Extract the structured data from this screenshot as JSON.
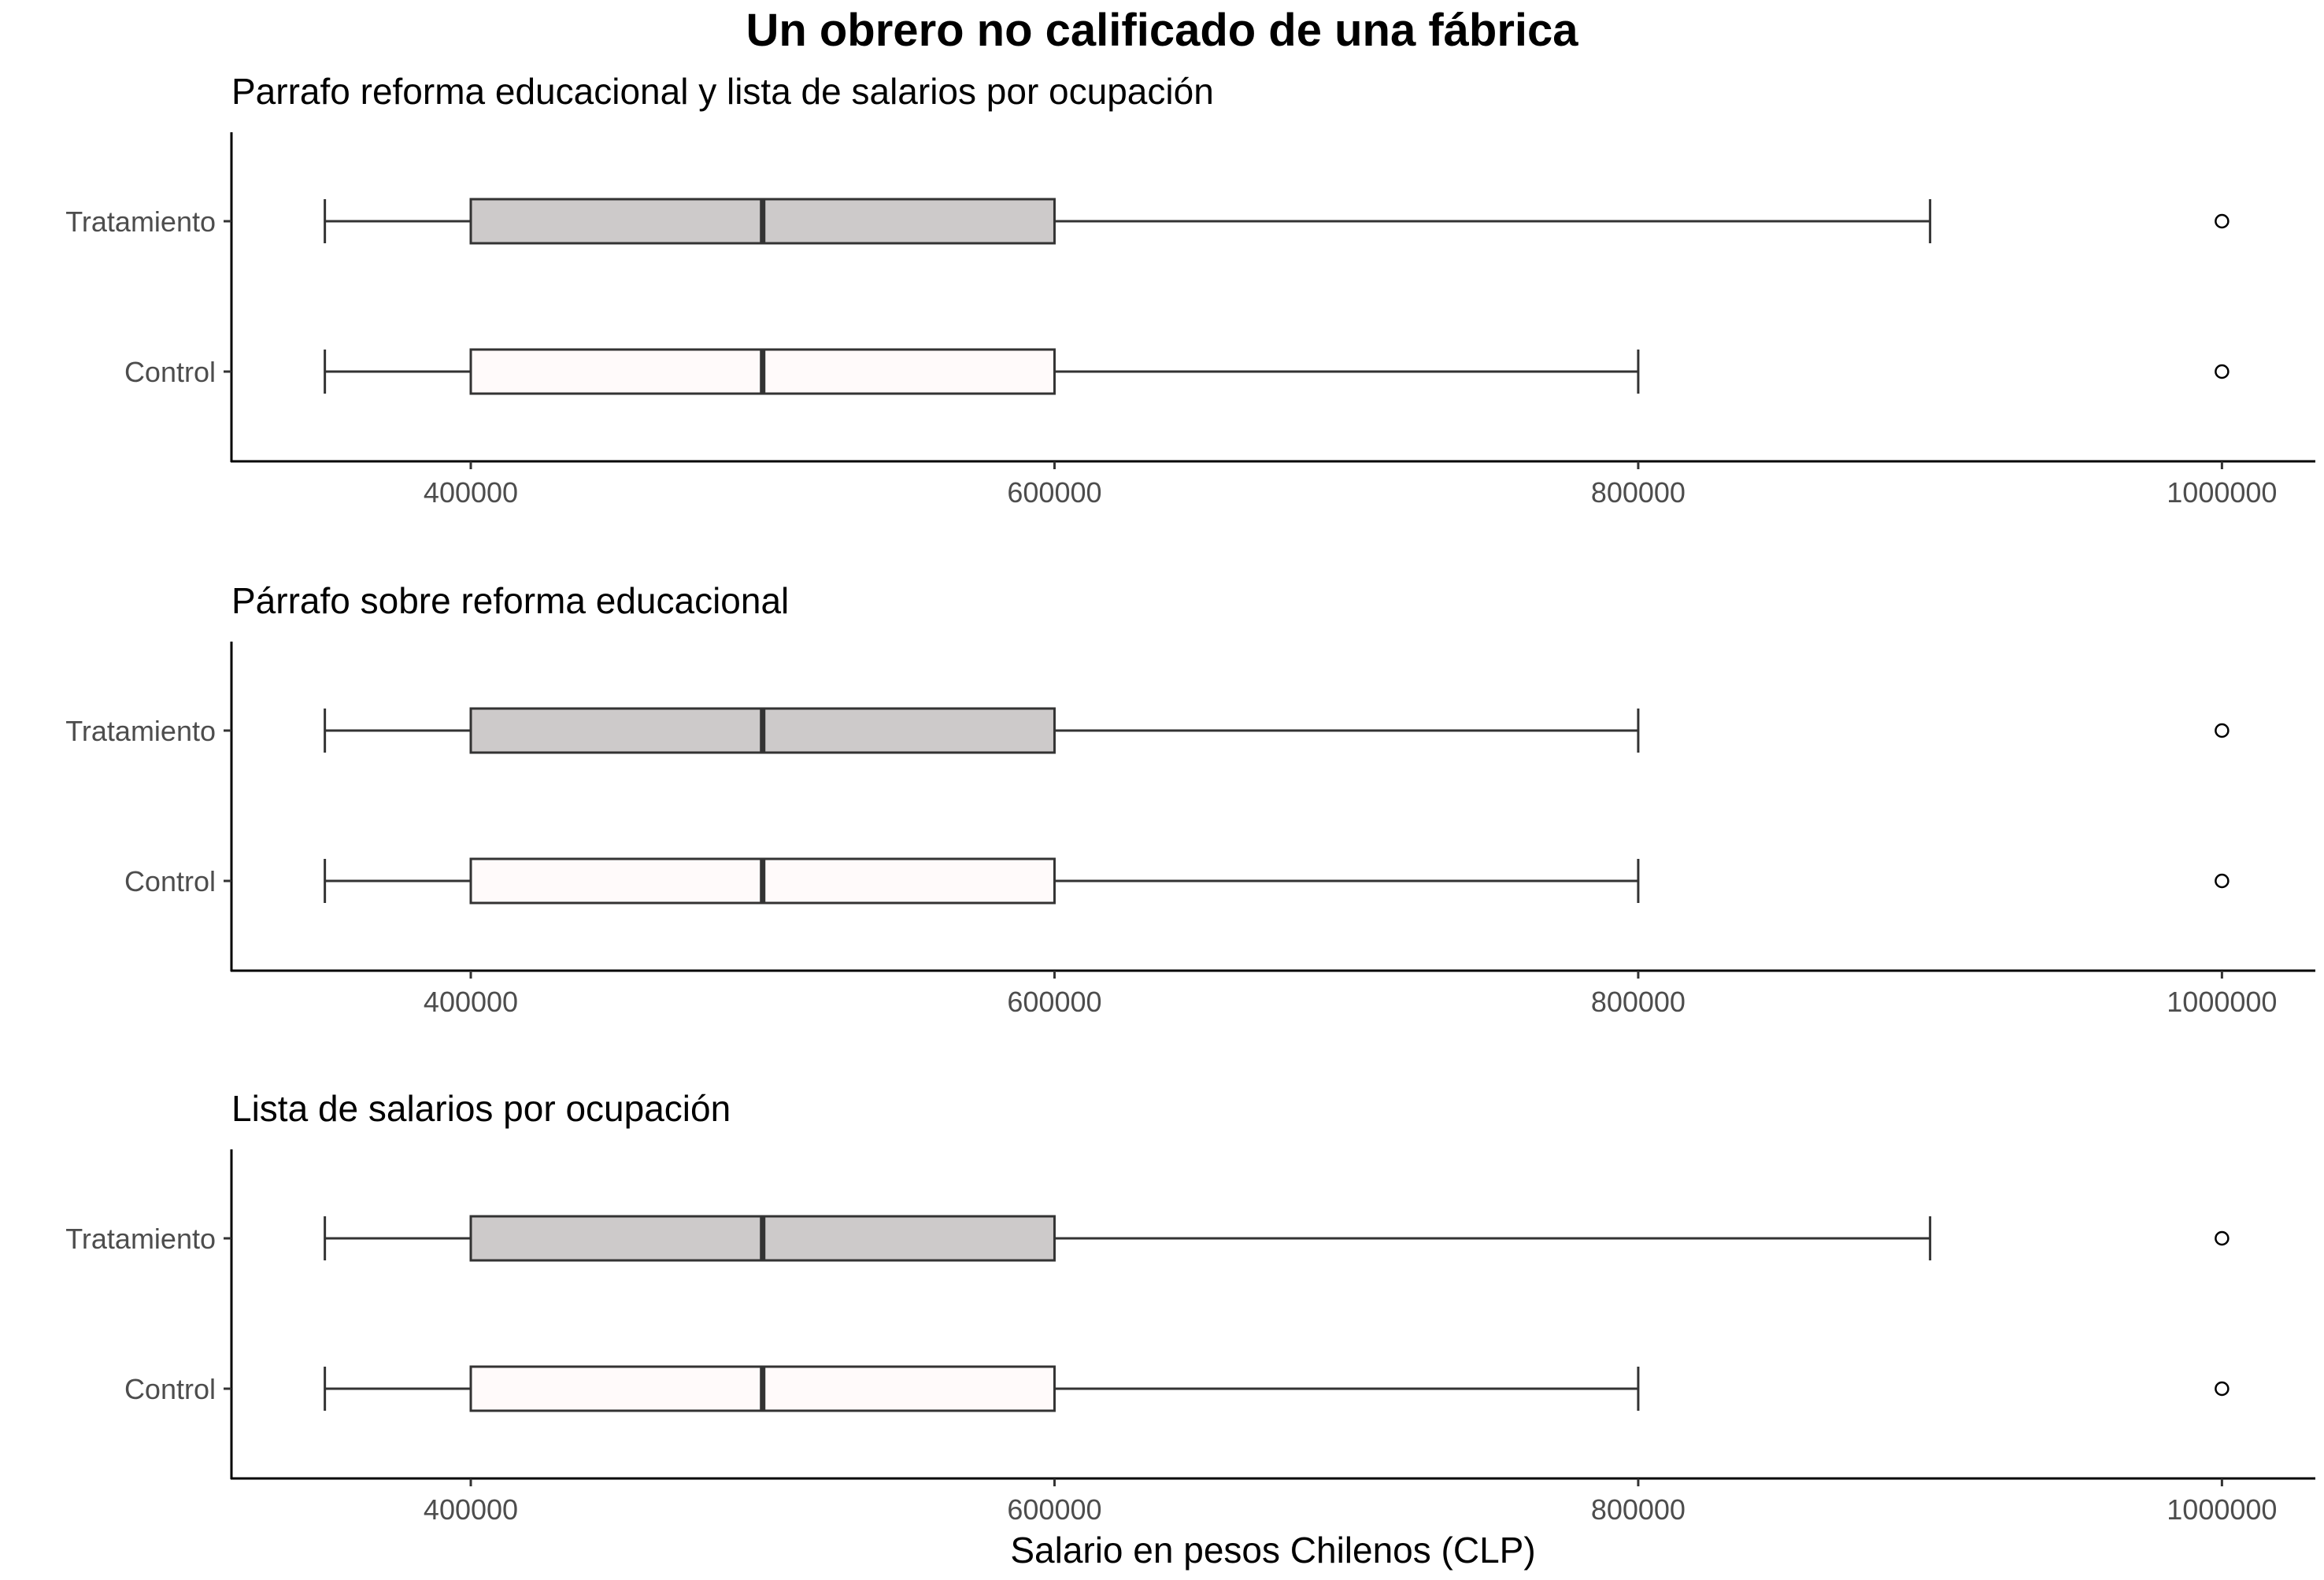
{
  "chart_data": {
    "type": "box",
    "title": "Un obrero no calificado de una fábrica",
    "xlabel": "Salario en pesos Chilenos (CLP)",
    "xlim": [
      318000,
      1032000
    ],
    "xticks": [
      "400000",
      "600000",
      "800000",
      "1000000"
    ],
    "xtick_values": [
      400000,
      600000,
      800000,
      1000000
    ],
    "colors": {
      "Tratamiento": "#cdcaca",
      "Control": "#fffafa",
      "stroke": "#333333"
    },
    "panels": [
      {
        "subtitle": "Parrafo reforma educacional y lista de salarios por ocupación",
        "groups": [
          {
            "label": "Tratamiento",
            "min": 350000,
            "q1": 400000,
            "median": 500000,
            "q3": 600000,
            "max": 900000,
            "outliers": [
              1000000
            ]
          },
          {
            "label": "Control",
            "min": 350000,
            "q1": 400000,
            "median": 500000,
            "q3": 600000,
            "max": 800000,
            "outliers": [
              1000000
            ]
          }
        ]
      },
      {
        "subtitle": "Párrafo sobre reforma educacional",
        "groups": [
          {
            "label": "Tratamiento",
            "min": 350000,
            "q1": 400000,
            "median": 500000,
            "q3": 600000,
            "max": 800000,
            "outliers": [
              1000000
            ]
          },
          {
            "label": "Control",
            "min": 350000,
            "q1": 400000,
            "median": 500000,
            "q3": 600000,
            "max": 800000,
            "outliers": [
              1000000
            ]
          }
        ]
      },
      {
        "subtitle": "Lista de salarios por ocupación",
        "groups": [
          {
            "label": "Tratamiento",
            "min": 350000,
            "q1": 400000,
            "median": 500000,
            "q3": 600000,
            "max": 900000,
            "outliers": [
              1000000
            ]
          },
          {
            "label": "Control",
            "min": 350000,
            "q1": 400000,
            "median": 500000,
            "q3": 600000,
            "max": 800000,
            "outliers": [
              1000000
            ]
          }
        ]
      }
    ]
  }
}
